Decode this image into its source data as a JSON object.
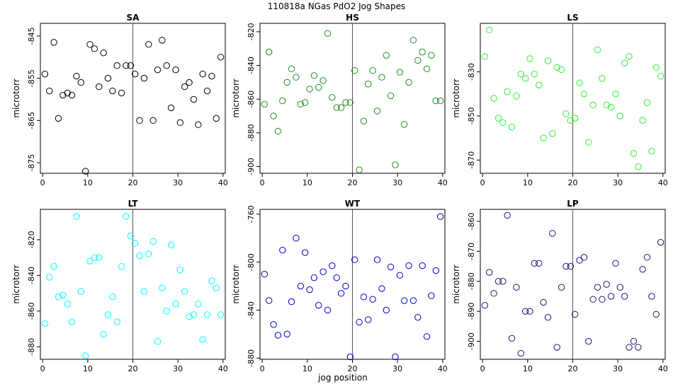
{
  "figure": {
    "title": "110818a   NGas PdO2 Jog Shapes",
    "xlabel": "jog position"
  },
  "chart_data": [
    {
      "type": "scatter",
      "title": "SA",
      "ylabel": "microtorr",
      "color": "#000000",
      "xlim": [
        -0.5,
        40.5
      ],
      "ylim": [
        -877.5,
        -842
      ],
      "xticks": [
        0,
        10,
        20,
        30,
        40
      ],
      "yticks": [
        -845,
        -855,
        -865,
        -875
      ],
      "vline": 20,
      "x": [
        0.5,
        1.5,
        2.5,
        3.5,
        4.5,
        5.5,
        6.5,
        7.5,
        8.5,
        9.5,
        10.5,
        11.5,
        12.5,
        13.5,
        14.5,
        15.5,
        16.5,
        17.5,
        18.5,
        19.5,
        20.5,
        21.5,
        22.5,
        23.5,
        24.5,
        25.5,
        26.5,
        27.5,
        28.5,
        29.5,
        30.5,
        31.5,
        32.5,
        33.5,
        34.5,
        35.5,
        36.5,
        37.5,
        38.5,
        39.5
      ],
      "y": [
        -854,
        -858,
        -846.5,
        -864.5,
        -859,
        -858.5,
        -859,
        -854.5,
        -856,
        -877,
        -847,
        -848,
        -857,
        -849,
        -855,
        -858,
        -852,
        -858.5,
        -852,
        -852,
        -854,
        -865,
        -855,
        -847,
        -865,
        -853,
        -846,
        -852,
        -862,
        -853,
        -865.5,
        -857,
        -856,
        -860,
        -866,
        -854,
        -858,
        -854.5,
        -864.5,
        -850
      ]
    },
    {
      "type": "scatter",
      "title": "HS",
      "ylabel": "microtorr",
      "color": "#228B22",
      "xlim": [
        -0.5,
        40.5
      ],
      "ylim": [
        -904,
        -815
      ],
      "xticks": [
        0,
        10,
        20,
        30,
        40
      ],
      "yticks": [
        -820,
        -840,
        -860,
        -880,
        -900
      ],
      "vline": 20,
      "x": [
        0.5,
        1.5,
        2.5,
        3.5,
        4.5,
        5.5,
        6.5,
        7.5,
        8.5,
        9.5,
        10.5,
        11.5,
        12.5,
        13.5,
        14.5,
        15.5,
        16.5,
        17.5,
        18.5,
        19.5,
        20.5,
        21.5,
        22.5,
        23.5,
        24.5,
        25.5,
        26.5,
        27.5,
        28.5,
        29.5,
        30.5,
        31.5,
        32.5,
        33.5,
        34.5,
        35.5,
        36.5,
        37.5,
        38.5,
        39.5
      ],
      "y": [
        -863,
        -832,
        -870,
        -879,
        -861,
        -850,
        -842,
        -847,
        -863,
        -862,
        -854,
        -846,
        -853,
        -849,
        -821,
        -859,
        -865,
        -865,
        -862,
        -862,
        -843,
        -902,
        -873,
        -851,
        -843,
        -867,
        -847,
        -834,
        -858,
        -899,
        -844,
        -875,
        -850,
        -825,
        -837,
        -832,
        -842,
        -834,
        -861,
        -861
      ]
    },
    {
      "type": "scatter",
      "title": "LS",
      "ylabel": "microtorr",
      "color": "#33EE33",
      "xlim": [
        -0.5,
        40.5
      ],
      "ylim": [
        -876,
        -808
      ],
      "xticks": [
        0,
        10,
        20,
        30,
        40
      ],
      "yticks": [
        -830,
        -850,
        -870
      ],
      "vline": 20,
      "x": [
        0.5,
        1.5,
        2.5,
        3.5,
        4.5,
        5.5,
        6.5,
        7.5,
        8.5,
        9.5,
        10.5,
        11.5,
        12.5,
        13.5,
        14.5,
        15.5,
        16.5,
        17.5,
        18.5,
        19.5,
        20.5,
        21.5,
        22.5,
        23.5,
        24.5,
        25.5,
        26.5,
        27.5,
        28.5,
        29.5,
        30.5,
        31.5,
        32.5,
        33.5,
        34.5,
        35.5,
        36.5,
        37.5,
        38.5,
        39.5
      ],
      "y": [
        -823,
        -811,
        -842,
        -851,
        -853,
        -839,
        -855,
        -841,
        -831,
        -833,
        -824,
        -831,
        -836,
        -860,
        -825,
        -858,
        -828,
        -829,
        -849,
        -852,
        -851,
        -835,
        -840,
        -862,
        -845,
        -820,
        -833,
        -845,
        -846,
        -840,
        -850,
        -826,
        -823,
        -867,
        -873,
        -852,
        -844,
        -866,
        -828,
        -832
      ]
    },
    {
      "type": "scatter",
      "title": "LT",
      "ylabel": "microtorr",
      "color": "#00FFFF",
      "xlim": [
        -0.5,
        40.5
      ],
      "ylim": [
        -887,
        -803
      ],
      "xticks": [
        0,
        10,
        20,
        30,
        40
      ],
      "yticks": [
        -820,
        -840,
        -860,
        -880
      ],
      "vline": 20,
      "x": [
        0.5,
        1.5,
        2.5,
        3.5,
        4.5,
        5.5,
        6.5,
        7.5,
        8.5,
        9.5,
        10.5,
        11.5,
        12.5,
        13.5,
        14.5,
        15.5,
        16.5,
        17.5,
        18.5,
        19.5,
        20.5,
        21.5,
        22.5,
        23.5,
        24.5,
        25.5,
        26.5,
        27.5,
        28.5,
        29.5,
        30.5,
        31.5,
        32.5,
        33.5,
        34.5,
        35.5,
        36.5,
        37.5,
        38.5,
        39.5
      ],
      "y": [
        -867,
        -841,
        -835,
        -852,
        -851,
        -856,
        -866,
        -807,
        -849,
        -885,
        -832,
        -830,
        -830,
        -873,
        -862,
        -852,
        -866,
        -835,
        -807,
        -818,
        -822,
        -829,
        -849,
        -828,
        -821,
        -877,
        -847,
        -860,
        -823,
        -856,
        -837,
        -849,
        -863,
        -862,
        -856,
        -876,
        -862,
        -843,
        -847,
        -862
      ]
    },
    {
      "type": "scatter",
      "title": "WT",
      "ylabel": "microtorr",
      "color": "#0000CD",
      "xlim": [
        -0.5,
        40.5
      ],
      "ylim": [
        -881,
        -756
      ],
      "xticks": [
        0,
        10,
        20,
        30,
        40
      ],
      "yticks": [
        -760,
        -800,
        -840,
        -880
      ],
      "vline": 20,
      "x": [
        0.5,
        1.5,
        2.5,
        3.5,
        4.5,
        5.5,
        6.5,
        7.5,
        8.5,
        9.5,
        10.5,
        11.5,
        12.5,
        13.5,
        14.5,
        15.5,
        16.5,
        17.5,
        18.5,
        19.5,
        20.5,
        21.5,
        22.5,
        23.5,
        24.5,
        25.5,
        26.5,
        27.5,
        28.5,
        29.5,
        30.5,
        31.5,
        32.5,
        33.5,
        34.5,
        35.5,
        36.5,
        37.5,
        38.5,
        39.5
      ],
      "y": [
        -810,
        -832,
        -852,
        -861,
        -790,
        -860,
        -833,
        -780,
        -820,
        -792,
        -823,
        -813,
        -836,
        -808,
        -840,
        -803,
        -813,
        -826,
        -820,
        -879,
        -798,
        -850,
        -829,
        -848,
        -831,
        -798,
        -822,
        -840,
        -804,
        -879,
        -811,
        -832,
        -803,
        -832,
        -846,
        -803,
        -862,
        -828,
        -807,
        -762
      ]
    },
    {
      "type": "scatter",
      "title": "LP",
      "ylabel": "microtorr",
      "color": "#191970",
      "xlim": [
        -0.5,
        40.5
      ],
      "ylim": [
        -906,
        -856
      ],
      "xticks": [
        0,
        10,
        20,
        30,
        40
      ],
      "yticks": [
        -860,
        -870,
        -880,
        -890,
        -900
      ],
      "vline": 20,
      "x": [
        0.5,
        1.5,
        2.5,
        3.5,
        4.5,
        5.5,
        6.5,
        7.5,
        8.5,
        9.5,
        10.5,
        11.5,
        12.5,
        13.5,
        14.5,
        15.5,
        16.5,
        17.5,
        18.5,
        19.5,
        20.5,
        21.5,
        22.5,
        23.5,
        24.5,
        25.5,
        26.5,
        27.5,
        28.5,
        29.5,
        30.5,
        31.5,
        32.5,
        33.5,
        34.5,
        35.5,
        36.5,
        37.5,
        38.5,
        39.5
      ],
      "y": [
        -888,
        -877,
        -884,
        -880,
        -880,
        -858,
        -899,
        -882,
        -904,
        -890,
        -890,
        -874,
        -874,
        -887,
        -892,
        -864,
        -902,
        -882,
        -875,
        -875,
        -891,
        -873,
        -872,
        -900,
        -886,
        -882,
        -886,
        -881,
        -885,
        -874,
        -882,
        -885,
        -902,
        -900,
        -902,
        -876,
        -872,
        -885,
        -891,
        -867
      ]
    }
  ]
}
